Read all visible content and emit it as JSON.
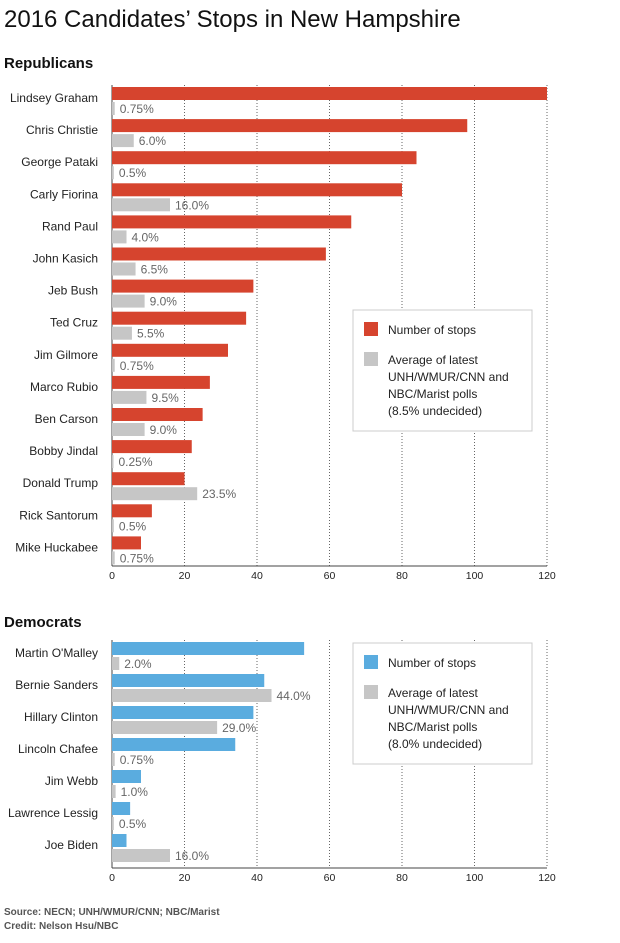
{
  "title": "2016 Candidates’ Stops in New Hampshire",
  "colors": {
    "republican": "#d6442e",
    "democrat": "#5aacdf",
    "poll": "#c6c6c6"
  },
  "footer": {
    "source": "Source: NECN;  UNH/WMUR/CNN; NBC/Marist",
    "credit": "Credit: Nelson Hsu/NBC"
  },
  "chart_data": [
    {
      "type": "bar",
      "orientation": "horizontal",
      "title": "Republicans",
      "categories": [
        "Lindsey Graham",
        "Chris Christie",
        "George Pataki",
        "Carly Fiorina",
        "Rand Paul",
        "John Kasich",
        "Jeb Bush",
        "Ted Cruz",
        "Jim Gilmore",
        "Marco Rubio",
        "Ben Carson",
        "Bobby Jindal",
        "Donald Trump",
        "Rick Santorum",
        "Mike Huckabee"
      ],
      "series": [
        {
          "name": "Number of stops",
          "values": [
            120,
            98,
            84,
            80,
            66,
            59,
            39,
            37,
            32,
            27,
            25,
            22,
            20,
            11,
            8
          ]
        },
        {
          "name": "Average of latest UNH/WMUR/CNN and NBC/Marist polls (8.5% undecided)",
          "values": [
            0.75,
            6.0,
            0.5,
            16.0,
            4.0,
            6.5,
            9.0,
            5.5,
            0.75,
            9.5,
            9.0,
            0.25,
            23.5,
            0.5,
            0.75
          ],
          "labels": [
            "0.75%",
            "6.0%",
            "0.5%",
            "16.0%",
            "4.0%",
            "6.5%",
            "9.0%",
            "5.5%",
            "0.75%",
            "9.5%",
            "9.0%",
            "0.25%",
            "23.5%",
            "0.5%",
            "0.75%"
          ]
        }
      ],
      "legend": [
        "Number of stops",
        "Average of latest",
        "UNH/WMUR/CNN and",
        "NBC/Marist polls",
        "(8.5% undecided)"
      ],
      "xlim": [
        0,
        120
      ],
      "xticks": [
        "0",
        "20",
        "40",
        "60",
        "80",
        "100",
        "120"
      ],
      "grid": true,
      "legend_position": "right"
    },
    {
      "type": "bar",
      "orientation": "horizontal",
      "title": "Democrats",
      "categories": [
        "Martin O'Malley",
        "Bernie Sanders",
        "Hillary Clinton",
        "Lincoln Chafee",
        "Jim Webb",
        "Lawrence Lessig",
        "Joe Biden"
      ],
      "series": [
        {
          "name": "Number of stops",
          "values": [
            53,
            42,
            39,
            34,
            8,
            5,
            4
          ]
        },
        {
          "name": "Average of latest UNH/WMUR/CNN and NBC/Marist polls (8.0% undecided)",
          "values": [
            2.0,
            44.0,
            29.0,
            0.75,
            1.0,
            0.5,
            16.0
          ],
          "labels": [
            "2.0%",
            "44.0%",
            "29.0%",
            "0.75%",
            "1.0%",
            "0.5%",
            "16.0%"
          ]
        }
      ],
      "legend": [
        "Number of stops",
        "Average of latest",
        "UNH/WMUR/CNN and",
        "NBC/Marist polls",
        "(8.0% undecided)"
      ],
      "xlim": [
        0,
        120
      ],
      "xticks": [
        "0",
        "20",
        "40",
        "60",
        "80",
        "100",
        "120"
      ],
      "grid": true,
      "legend_position": "top-right"
    }
  ]
}
